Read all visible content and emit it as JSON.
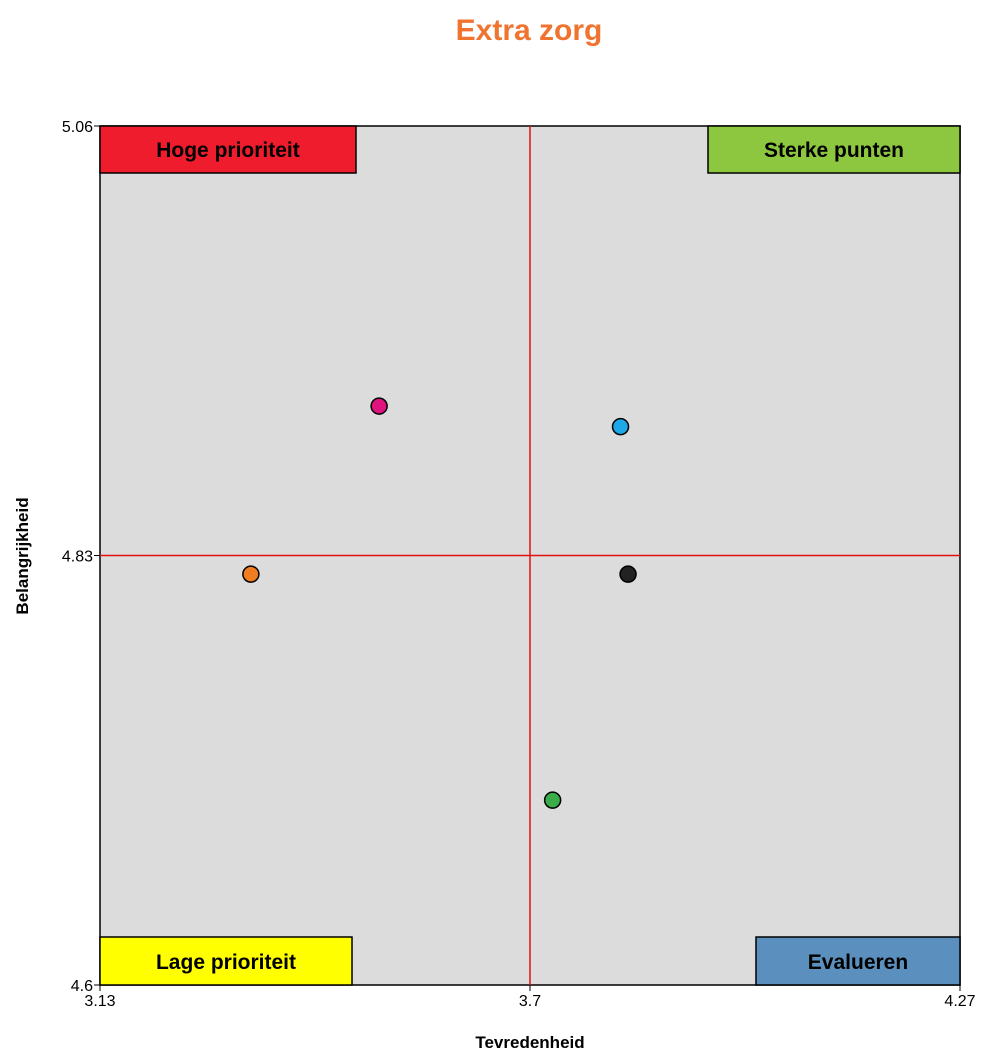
{
  "chart_data": {
    "type": "scatter",
    "title": "Extra zorg",
    "xlabel": "Tevredenheid",
    "ylabel": "Belangrijkheid",
    "xlim": [
      3.13,
      4.27
    ],
    "ylim": [
      4.6,
      5.06
    ],
    "xticks": [
      "3.13",
      "3.7",
      "4.27"
    ],
    "yticks": [
      "4.6",
      "4.83",
      "5.06"
    ],
    "reference_lines": {
      "x": 3.7,
      "y": 4.83
    },
    "quadrants": {
      "top_left": "Hoge prioriteit",
      "top_right": "Sterke punten",
      "bottom_left": "Lage prioriteit",
      "bottom_right": "Evalueren"
    },
    "points": [
      {
        "x": 3.5,
        "y": 4.91,
        "color": "#e0147f"
      },
      {
        "x": 3.82,
        "y": 4.899,
        "color": "#1ea8e8"
      },
      {
        "x": 3.33,
        "y": 4.82,
        "color": "#f07d1f"
      },
      {
        "x": 3.83,
        "y": 4.82,
        "color": "#222222"
      },
      {
        "x": 3.73,
        "y": 4.699,
        "color": "#3aad4a"
      }
    ]
  },
  "colors": {
    "title": "#f07430",
    "plot_background": "#dcdcdc",
    "reference_line": "#e01010",
    "quadrant_top_left": "#ee1c2c",
    "quadrant_top_right": "#8dc63f",
    "quadrant_bottom_left": "#ffff00",
    "quadrant_bottom_right": "#5b8fbd"
  }
}
